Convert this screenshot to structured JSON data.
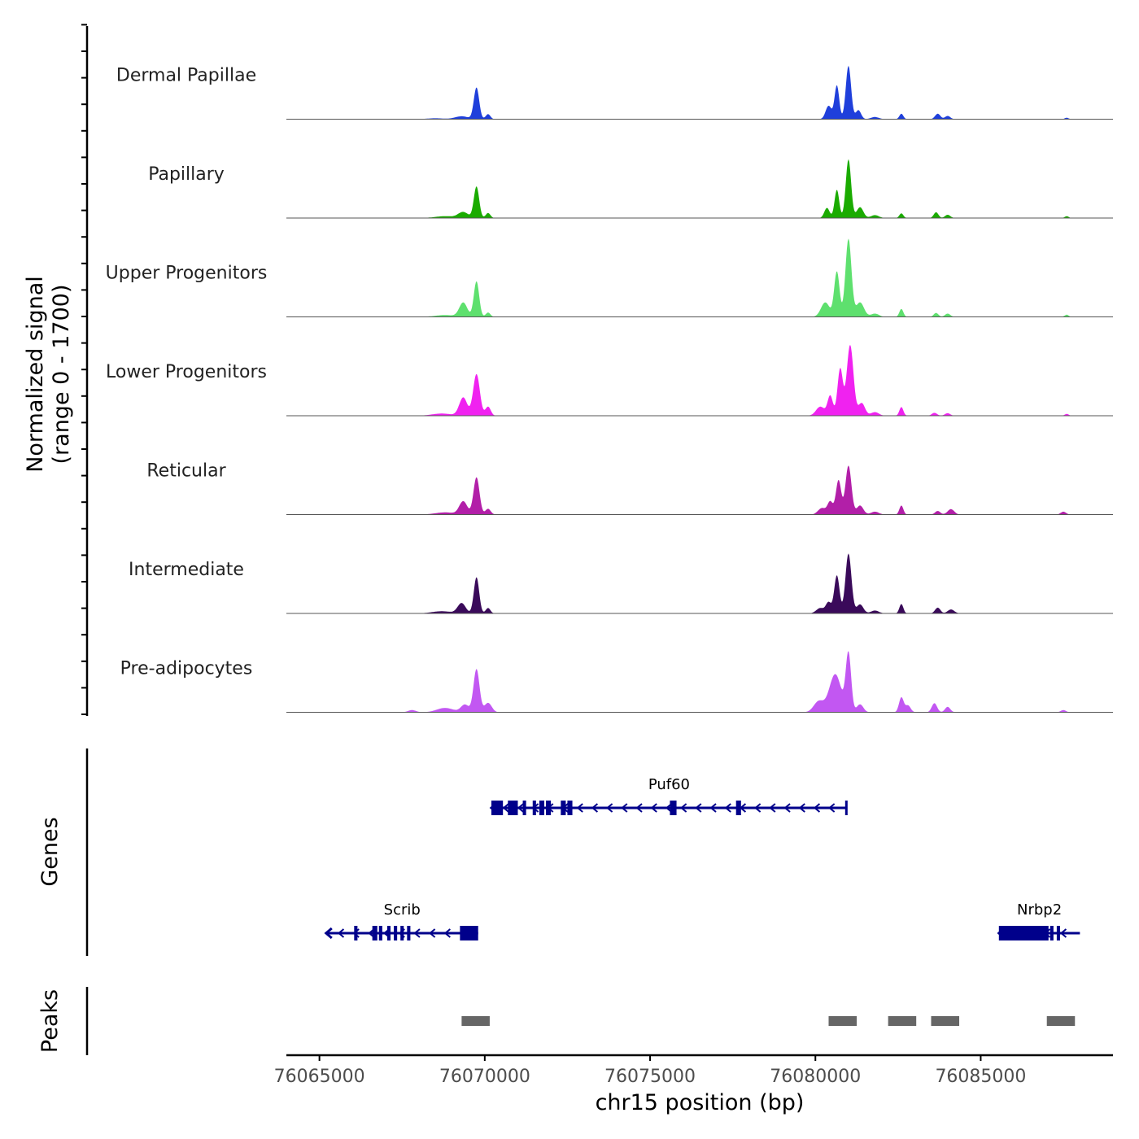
{
  "chart_data": {
    "type": "area",
    "chromosome": "chr15",
    "x_range": [
      76064000,
      76089000
    ],
    "x_ticks": [
      76065000,
      76070000,
      76075000,
      76080000,
      76085000
    ],
    "x_tick_labels": [
      "76065000",
      "76070000",
      "76075000",
      "76080000",
      "76085000"
    ],
    "xlabel": "chr15 position (bp)",
    "ylabel_line1": "Normalized signal",
    "ylabel_line2": "(range 0 - 1700)",
    "y_range": [
      0,
      1700
    ],
    "genes_label": "Genes",
    "peaks_label": "Peaks",
    "tracks": [
      {
        "name": "Dermal Papillae",
        "color": "#1f3fdb",
        "peaks": [
          [
            76068500,
            25,
            250
          ],
          [
            76069300,
            80,
            200
          ],
          [
            76069750,
            870,
            80
          ],
          [
            76070100,
            140,
            70
          ],
          [
            76080400,
            370,
            90
          ],
          [
            76080650,
            930,
            70
          ],
          [
            76081000,
            1470,
            80
          ],
          [
            76081300,
            250,
            80
          ],
          [
            76081800,
            60,
            120
          ],
          [
            76082600,
            150,
            60
          ],
          [
            76083700,
            150,
            80
          ],
          [
            76084000,
            90,
            80
          ],
          [
            76087600,
            40,
            60
          ]
        ]
      },
      {
        "name": "Papillary",
        "color": "#1aab00",
        "peaks": [
          [
            76068800,
            50,
            300
          ],
          [
            76069350,
            160,
            150
          ],
          [
            76069750,
            870,
            80
          ],
          [
            76070100,
            140,
            70
          ],
          [
            76080350,
            280,
            80
          ],
          [
            76080650,
            780,
            70
          ],
          [
            76081000,
            1620,
            80
          ],
          [
            76081350,
            300,
            100
          ],
          [
            76081800,
            80,
            120
          ],
          [
            76082600,
            130,
            60
          ],
          [
            76083650,
            160,
            70
          ],
          [
            76084000,
            90,
            80
          ],
          [
            76087600,
            50,
            60
          ]
        ]
      },
      {
        "name": "Upper Progenitors",
        "color": "#5ee06e",
        "peaks": [
          [
            76068800,
            50,
            300
          ],
          [
            76069350,
            390,
            120
          ],
          [
            76069750,
            980,
            80
          ],
          [
            76070100,
            120,
            70
          ],
          [
            76080300,
            400,
            130
          ],
          [
            76080650,
            1250,
            80
          ],
          [
            76081000,
            2150,
            90
          ],
          [
            76081350,
            400,
            120
          ],
          [
            76081800,
            90,
            120
          ],
          [
            76082600,
            220,
            60
          ],
          [
            76083650,
            110,
            70
          ],
          [
            76084000,
            90,
            80
          ],
          [
            76087600,
            60,
            60
          ]
        ]
      },
      {
        "name": "Lower Progenitors",
        "color": "#f022f0",
        "peaks": [
          [
            76068700,
            60,
            300
          ],
          [
            76069350,
            500,
            120
          ],
          [
            76069750,
            1150,
            100
          ],
          [
            76070100,
            250,
            80
          ],
          [
            76080150,
            250,
            130
          ],
          [
            76080450,
            550,
            80
          ],
          [
            76080750,
            1300,
            80
          ],
          [
            76081050,
            1950,
            100
          ],
          [
            76081400,
            350,
            100
          ],
          [
            76081800,
            100,
            120
          ],
          [
            76082600,
            240,
            60
          ],
          [
            76083600,
            80,
            80
          ],
          [
            76084000,
            70,
            80
          ],
          [
            76087600,
            50,
            60
          ]
        ]
      },
      {
        "name": "Reticular",
        "color": "#b21fa8",
        "peaks": [
          [
            76068800,
            60,
            300
          ],
          [
            76069350,
            360,
            120
          ],
          [
            76069750,
            1030,
            90
          ],
          [
            76070100,
            160,
            80
          ],
          [
            76080200,
            180,
            120
          ],
          [
            76080450,
            350,
            80
          ],
          [
            76080700,
            950,
            80
          ],
          [
            76081000,
            1350,
            90
          ],
          [
            76081350,
            250,
            100
          ],
          [
            76081800,
            80,
            120
          ],
          [
            76082600,
            250,
            60
          ],
          [
            76083700,
            100,
            80
          ],
          [
            76084100,
            150,
            100
          ],
          [
            76087500,
            80,
            80
          ]
        ]
      },
      {
        "name": "Intermediate",
        "color": "#3a0a5a",
        "peaks": [
          [
            76068700,
            60,
            300
          ],
          [
            76069300,
            280,
            120
          ],
          [
            76069750,
            1000,
            80
          ],
          [
            76070100,
            150,
            70
          ],
          [
            76080150,
            150,
            120
          ],
          [
            76080400,
            300,
            80
          ],
          [
            76080650,
            1050,
            80
          ],
          [
            76081000,
            1650,
            90
          ],
          [
            76081350,
            250,
            100
          ],
          [
            76081800,
            80,
            120
          ],
          [
            76082600,
            260,
            60
          ],
          [
            76083700,
            160,
            80
          ],
          [
            76084100,
            110,
            100
          ]
        ]
      },
      {
        "name": "Pre-adipocytes",
        "color": "#c257f2",
        "peaks": [
          [
            76067800,
            60,
            120
          ],
          [
            76068800,
            120,
            250
          ],
          [
            76069400,
            210,
            120
          ],
          [
            76069750,
            1190,
            90
          ],
          [
            76070100,
            260,
            110
          ],
          [
            76080100,
            300,
            150
          ],
          [
            76080600,
            1050,
            180
          ],
          [
            76081000,
            1600,
            80
          ],
          [
            76081350,
            220,
            100
          ],
          [
            76082600,
            410,
            70
          ],
          [
            76082800,
            190,
            80
          ],
          [
            76083600,
            250,
            80
          ],
          [
            76084000,
            150,
            80
          ],
          [
            76087500,
            60,
            80
          ]
        ]
      }
    ],
    "genes": [
      {
        "name": "Puf60",
        "start": 76070200,
        "end": 76080950,
        "strand": "-",
        "exons": [
          [
            76070200,
            76070550
          ],
          [
            76070700,
            76071000
          ],
          [
            76071150,
            76071250
          ],
          [
            76071450,
            76071550
          ],
          [
            76071650,
            76071800
          ],
          [
            76071850,
            76072000
          ],
          [
            76072300,
            76072450
          ],
          [
            76072500,
            76072650
          ],
          [
            76075600,
            76075800
          ],
          [
            76077600,
            76077750
          ],
          [
            76080900,
            76080950
          ]
        ]
      },
      {
        "name": "Scrib",
        "start": 76065200,
        "end": 76069800,
        "strand": "-",
        "exons": [
          [
            76066050,
            76066150
          ],
          [
            76066600,
            76066750
          ],
          [
            76066800,
            76066900
          ],
          [
            76067050,
            76067150
          ],
          [
            76067250,
            76067350
          ],
          [
            76067450,
            76067550
          ],
          [
            76067650,
            76067750
          ],
          [
            76069250,
            76069800
          ]
        ]
      },
      {
        "name": "Nrbp2",
        "start": 76085550,
        "end": 76088000,
        "strand": "-",
        "exons": [
          [
            76085550,
            76087050
          ],
          [
            76087100,
            76087200
          ],
          [
            76087300,
            76087400
          ]
        ]
      }
    ],
    "peaks": [
      [
        76069300,
        76070150
      ],
      [
        76080400,
        76081250
      ],
      [
        76082200,
        76083050
      ],
      [
        76083500,
        76084350
      ],
      [
        76087000,
        76087850
      ]
    ]
  }
}
